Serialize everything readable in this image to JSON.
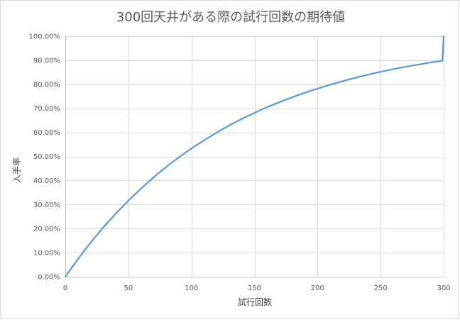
{
  "chart_data": {
    "type": "line",
    "title": "300回天井がある際の試行回数の期待値",
    "xlabel": "試行回数",
    "ylabel": "入手率",
    "xlim": [
      0,
      300
    ],
    "ylim": [
      0,
      1
    ],
    "x_ticks": [
      0,
      50,
      100,
      150,
      200,
      250,
      300
    ],
    "x_tick_labels": [
      "0",
      "50",
      "100",
      "150",
      "200",
      "250",
      "300"
    ],
    "y_ticks": [
      0,
      0.1,
      0.2,
      0.3,
      0.4,
      0.5,
      0.6,
      0.7,
      0.8,
      0.9,
      1.0
    ],
    "y_tick_labels": [
      "0.00%",
      "10.00%",
      "20.00%",
      "30.00%",
      "40.00%",
      "50.00%",
      "60.00%",
      "70.00%",
      "80.00%",
      "90.00%",
      "100.00%"
    ],
    "grid": true,
    "legend": "none",
    "series_color": "#5b9bd5",
    "series": [
      {
        "x": [
          0,
          10,
          20,
          30,
          40,
          50,
          60,
          70,
          80,
          90,
          100,
          110,
          120,
          130,
          140,
          150,
          160,
          170,
          180,
          190,
          200,
          210,
          220,
          230,
          240,
          250,
          260,
          270,
          280,
          290,
          299,
          300
        ],
        "values": [
          0,
          0.073,
          0.141,
          0.204,
          0.262,
          0.316,
          0.366,
          0.413,
          0.456,
          0.496,
          0.533,
          0.567,
          0.599,
          0.629,
          0.656,
          0.681,
          0.705,
          0.726,
          0.746,
          0.765,
          0.782,
          0.798,
          0.813,
          0.827,
          0.84,
          0.852,
          0.863,
          0.873,
          0.882,
          0.891,
          0.898,
          1.0
        ]
      }
    ]
  }
}
